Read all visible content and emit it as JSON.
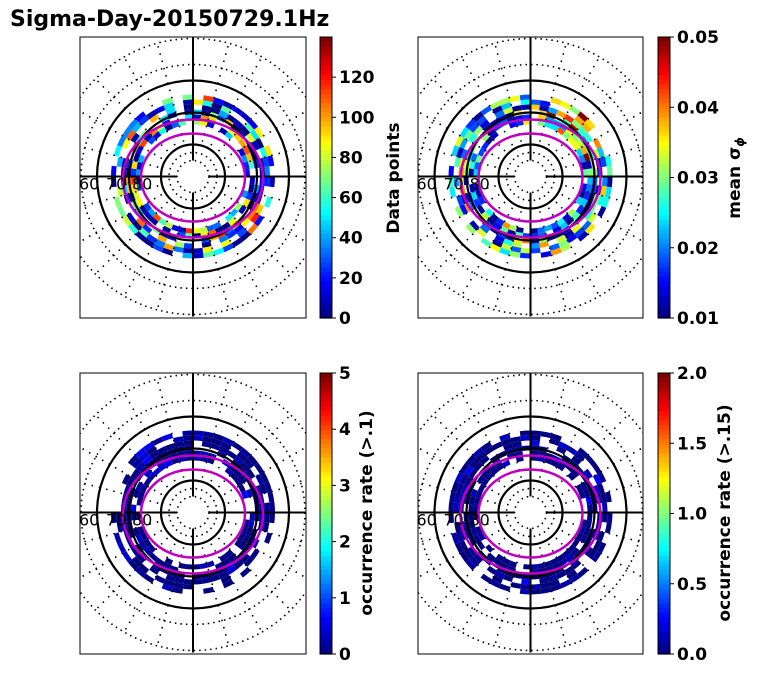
{
  "chart_data": {
    "type": "heatmap",
    "title": "Sigma-Day-20150729.1Hz",
    "colormap": "jet",
    "grid": true,
    "latitude_labels": [
      "60",
      "70",
      "80"
    ],
    "panels": [
      {
        "id": "data-points",
        "colorbar_label": "Data points",
        "colorbar_label_sub": "",
        "clim": [
          0,
          140
        ],
        "ticks": [
          "0",
          "20",
          "40",
          "60",
          "80",
          "100",
          "120"
        ],
        "tick_values": [
          0,
          20,
          40,
          60,
          80,
          100,
          120
        ]
      },
      {
        "id": "mean-sigma-phi",
        "colorbar_label": "mean σ",
        "colorbar_label_sub": "ϕ",
        "clim": [
          0.01,
          0.05
        ],
        "ticks": [
          "0.01",
          "0.02",
          "0.03",
          "0.04",
          "0.05"
        ],
        "tick_values": [
          0.01,
          0.02,
          0.03,
          0.04,
          0.05
        ]
      },
      {
        "id": "occurrence-rate-01",
        "colorbar_label": "occurrence rate (>.1)",
        "colorbar_label_sub": "",
        "clim": [
          0,
          5
        ],
        "ticks": [
          "0",
          "1",
          "2",
          "3",
          "4",
          "5"
        ],
        "tick_values": [
          0,
          1,
          2,
          3,
          4,
          5
        ]
      },
      {
        "id": "occurrence-rate-015",
        "colorbar_label": "occurrence rate (>.15)",
        "colorbar_label_sub": "",
        "clim": [
          0,
          2
        ],
        "ticks": [
          "0.0",
          "0.5",
          "1.0",
          "1.5",
          "2.0"
        ],
        "tick_values": [
          0,
          0.5,
          1.0,
          1.5,
          2.0
        ]
      }
    ]
  }
}
